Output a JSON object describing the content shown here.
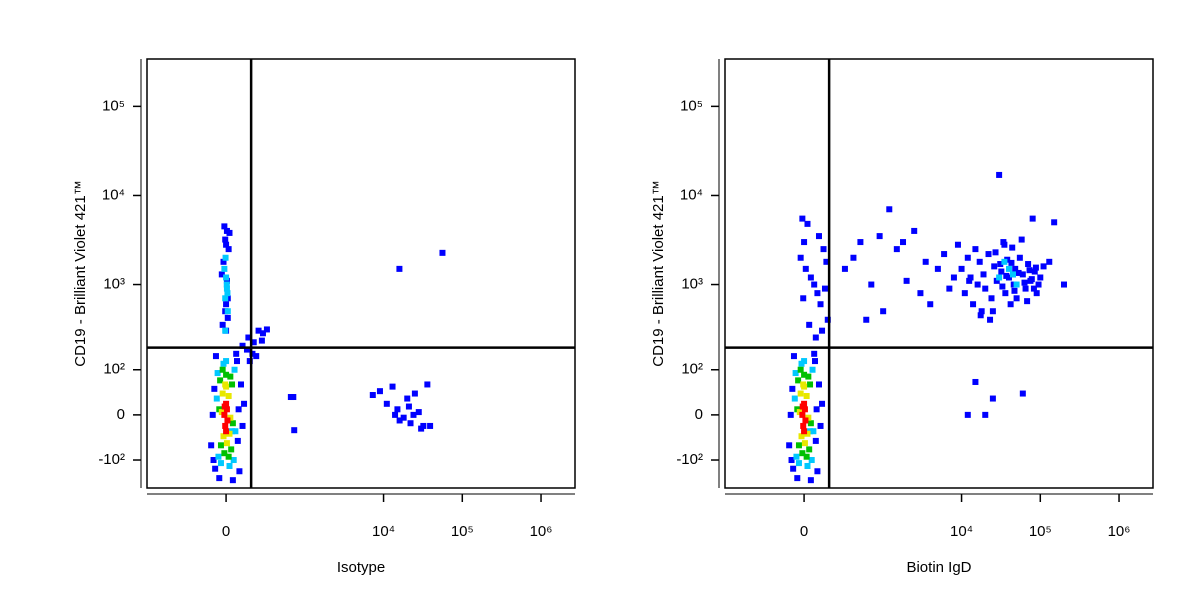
{
  "chart_data": [
    {
      "type": "scatter",
      "xscale": "biexponential",
      "yscale": "biexponential",
      "xlabel": "Isotype",
      "ylabel": "CD19 - Brilliant Violet 421™",
      "xlim": [
        -1000,
        2700000
      ],
      "ylim": [
        -223,
        340000
      ],
      "xticks": [
        0,
        {
          "value": 10000,
          "label": "10⁴"
        },
        {
          "value": 100000,
          "label": "10⁵"
        },
        {
          "value": 1000000,
          "label": "10⁶"
        }
      ],
      "yticks": [
        {
          "value": -100,
          "label": "-10²"
        },
        0,
        {
          "value": 100,
          "label": "10²"
        },
        {
          "value": 1000,
          "label": "10³"
        },
        {
          "value": 10000,
          "label": "10⁴"
        },
        {
          "value": 100000,
          "label": "10⁵"
        }
      ],
      "gate_x": 160,
      "gate_y": 190,
      "series": [
        {
          "color": "#0000ff",
          "x": [
            -70,
            70,
            -65,
            65,
            -60,
            -80,
            75,
            80,
            -75,
            60,
            -40,
            40,
            90,
            100,
            110,
            -90,
            -20,
            10,
            0,
            -15,
            15,
            -5,
            5,
            -10,
            20,
            0,
            -25,
            10,
            -5,
            5,
            0,
            100,
            140,
            180,
            220,
            260,
            300,
            130,
            170,
            250,
            200,
            150,
            650,
            700,
            720,
            7300,
            9000,
            11000,
            13000,
            15000,
            18000,
            20000,
            22000,
            25000,
            28000,
            32000,
            36000,
            39000,
            16000,
            24000,
            30000,
            14000,
            21000,
            15900,
            56000
          ],
          "values": [
            50,
            -50,
            -130,
            130,
            150,
            0,
            10,
            -140,
            -100,
            160,
            -170,
            -180,
            60,
            -20,
            20,
            -60,
            350,
            420,
            600,
            1800,
            2500,
            3200,
            4000,
            4500,
            3800,
            2800,
            1300,
            700,
            500,
            1100,
            300,
            200,
            250,
            220,
            300,
            280,
            310,
            180,
            160,
            230,
            150,
            130,
            33,
            33,
            -28,
            37,
            45,
            20,
            55,
            10,
            -5,
            30,
            -15,
            40,
            5,
            -20,
            60,
            -20,
            -10,
            0,
            -25,
            0,
            15,
            1500,
            2270
          ]
        },
        {
          "color": "#00c8ff",
          "x": [
            -50,
            50,
            -45,
            45,
            -55,
            55,
            -15,
            20,
            -30,
            35,
            0,
            -5,
            10,
            -5,
            5,
            0,
            -10,
            8,
            -3,
            4
          ],
          "values": [
            90,
            100,
            -90,
            -100,
            30,
            -30,
            120,
            -120,
            -110,
            -30,
            130,
            300,
            500,
            700,
            900,
            1200,
            1500,
            800,
            2000,
            1000
          ]
        },
        {
          "color": "#00c000",
          "x": [
            -35,
            35,
            -30,
            30,
            -40,
            40,
            0,
            -10,
            15,
            -20,
            25
          ],
          "values": [
            70,
            60,
            -60,
            -70,
            10,
            -15,
            85,
            -80,
            -90,
            100,
            80
          ]
        },
        {
          "color": "#e8e800",
          "x": [
            -20,
            15,
            -15,
            20,
            0,
            -25,
            25,
            5,
            -5
          ],
          "values": [
            40,
            35,
            -40,
            -35,
            55,
            5,
            -5,
            -55,
            60
          ]
        },
        {
          "color": "#ff0000",
          "x": [
            -10,
            0,
            8,
            -5,
            5,
            0,
            -8
          ],
          "values": [
            0,
            20,
            -10,
            -20,
            10,
            -30,
            15
          ]
        }
      ]
    },
    {
      "type": "scatter",
      "xscale": "biexponential",
      "yscale": "biexponential",
      "xlabel": "Biotin IgD",
      "ylabel": "CD19 - Brilliant Violet 421™",
      "xlim": [
        -1000,
        2700000
      ],
      "ylim": [
        -223,
        340000
      ],
      "xticks": [
        0,
        {
          "value": 10000,
          "label": "10⁴"
        },
        {
          "value": 100000,
          "label": "10⁵"
        },
        {
          "value": 1000000,
          "label": "10⁶"
        }
      ],
      "yticks": [
        {
          "value": -100,
          "label": "-10²"
        },
        0,
        {
          "value": 100,
          "label": "10²"
        },
        {
          "value": 1000,
          "label": "10³"
        },
        {
          "value": 10000,
          "label": "10⁴"
        },
        {
          "value": 100000,
          "label": "10⁵"
        }
      ],
      "gate_x": 160,
      "gate_y": 190,
      "series": [
        {
          "color": "#0000ff",
          "x": [
            -70,
            70,
            -65,
            65,
            -60,
            -80,
            75,
            80,
            -75,
            60,
            -40,
            40,
            90,
            100,
            110,
            -90,
            -10,
            20,
            0,
            -20,
            10,
            60,
            80,
            100,
            120,
            140,
            150,
            -5,
            30,
            70,
            110,
            90,
            40,
            130,
            300,
            400,
            500,
            700,
            900,
            1200,
            1500,
            2000,
            2500,
            3000,
            4000,
            5000,
            6000,
            7000,
            8000,
            600,
            1000,
            1800,
            3500,
            9000,
            10000,
            11000,
            12000,
            13000,
            14000,
            15000,
            16000,
            17000,
            18000,
            19000,
            20000,
            22000,
            24000,
            26000,
            28000,
            30000,
            32000,
            34000,
            36000,
            38000,
            40000,
            42000,
            44000,
            46000,
            48000,
            50000,
            55000,
            60000,
            65000,
            70000,
            75000,
            80000,
            85000,
            90000,
            100000,
            110000,
            130000,
            150000,
            200000,
            12500,
            17500,
            23000,
            27000,
            33000,
            37000,
            43000,
            47000,
            53000,
            58000,
            63000,
            68000,
            73000,
            78000,
            83000,
            88000,
            95000,
            25000,
            35000,
            45000,
            31000,
            12000,
            15000,
            20000,
            25000,
            60000
          ],
          "values": [
            50,
            -50,
            -130,
            130,
            150,
            0,
            10,
            -140,
            -100,
            160,
            -170,
            -180,
            60,
            -20,
            20,
            -60,
            5500,
            4800,
            3000,
            2000,
            1500,
            1000,
            800,
            600,
            2500,
            1800,
            400,
            700,
            350,
            250,
            300,
            3500,
            1200,
            900,
            1500,
            2000,
            3000,
            1000,
            3500,
            7000,
            2500,
            1100,
            4000,
            800,
            600,
            1500,
            2200,
            900,
            1200,
            400,
            500,
            3000,
            1800,
            2800,
            1500,
            800,
            2000,
            1200,
            600,
            2500,
            1000,
            1800,
            500,
            1300,
            900,
            2200,
            700,
            1600,
            1100,
            17000,
            1400,
            3000,
            800,
            1900,
            1200,
            600,
            2600,
            1000,
            1500,
            700,
            2000,
            1300,
            900,
            1700,
            1100,
            5500,
            1400,
            800,
            1200,
            1600,
            1800,
            5000,
            1000,
            1100,
            450,
            400,
            2300,
            950,
            1250,
            1750,
            850,
            1350,
            3200,
            1050,
            650,
            1450,
            1150,
            900,
            1550,
            1000,
            500,
            2800,
            1300,
            1700,
            0,
            66,
            0,
            30,
            40
          ]
        },
        {
          "color": "#00c8ff",
          "x": [
            -50,
            50,
            -45,
            45,
            -55,
            55,
            -15,
            20,
            -30,
            35,
            0,
            30000,
            40000,
            50000,
            35000,
            45000
          ],
          "values": [
            90,
            100,
            -90,
            -100,
            30,
            -30,
            120,
            -120,
            -110,
            -30,
            130,
            1200,
            1500,
            1000,
            1800,
            1300
          ]
        },
        {
          "color": "#00c000",
          "x": [
            -35,
            35,
            -30,
            30,
            -40,
            40,
            0,
            -10,
            15,
            -20,
            25
          ],
          "values": [
            70,
            60,
            -60,
            -70,
            10,
            -15,
            85,
            -80,
            -90,
            100,
            80
          ]
        },
        {
          "color": "#e8e800",
          "x": [
            -20,
            15,
            -15,
            20,
            0,
            -25,
            25,
            5,
            -5
          ],
          "values": [
            40,
            35,
            -40,
            -35,
            55,
            5,
            -5,
            -55,
            60
          ]
        },
        {
          "color": "#ff0000",
          "x": [
            -10,
            0,
            8,
            -5,
            5,
            0,
            -8
          ],
          "values": [
            0,
            20,
            -10,
            -20,
            10,
            -30,
            15
          ]
        }
      ]
    }
  ]
}
